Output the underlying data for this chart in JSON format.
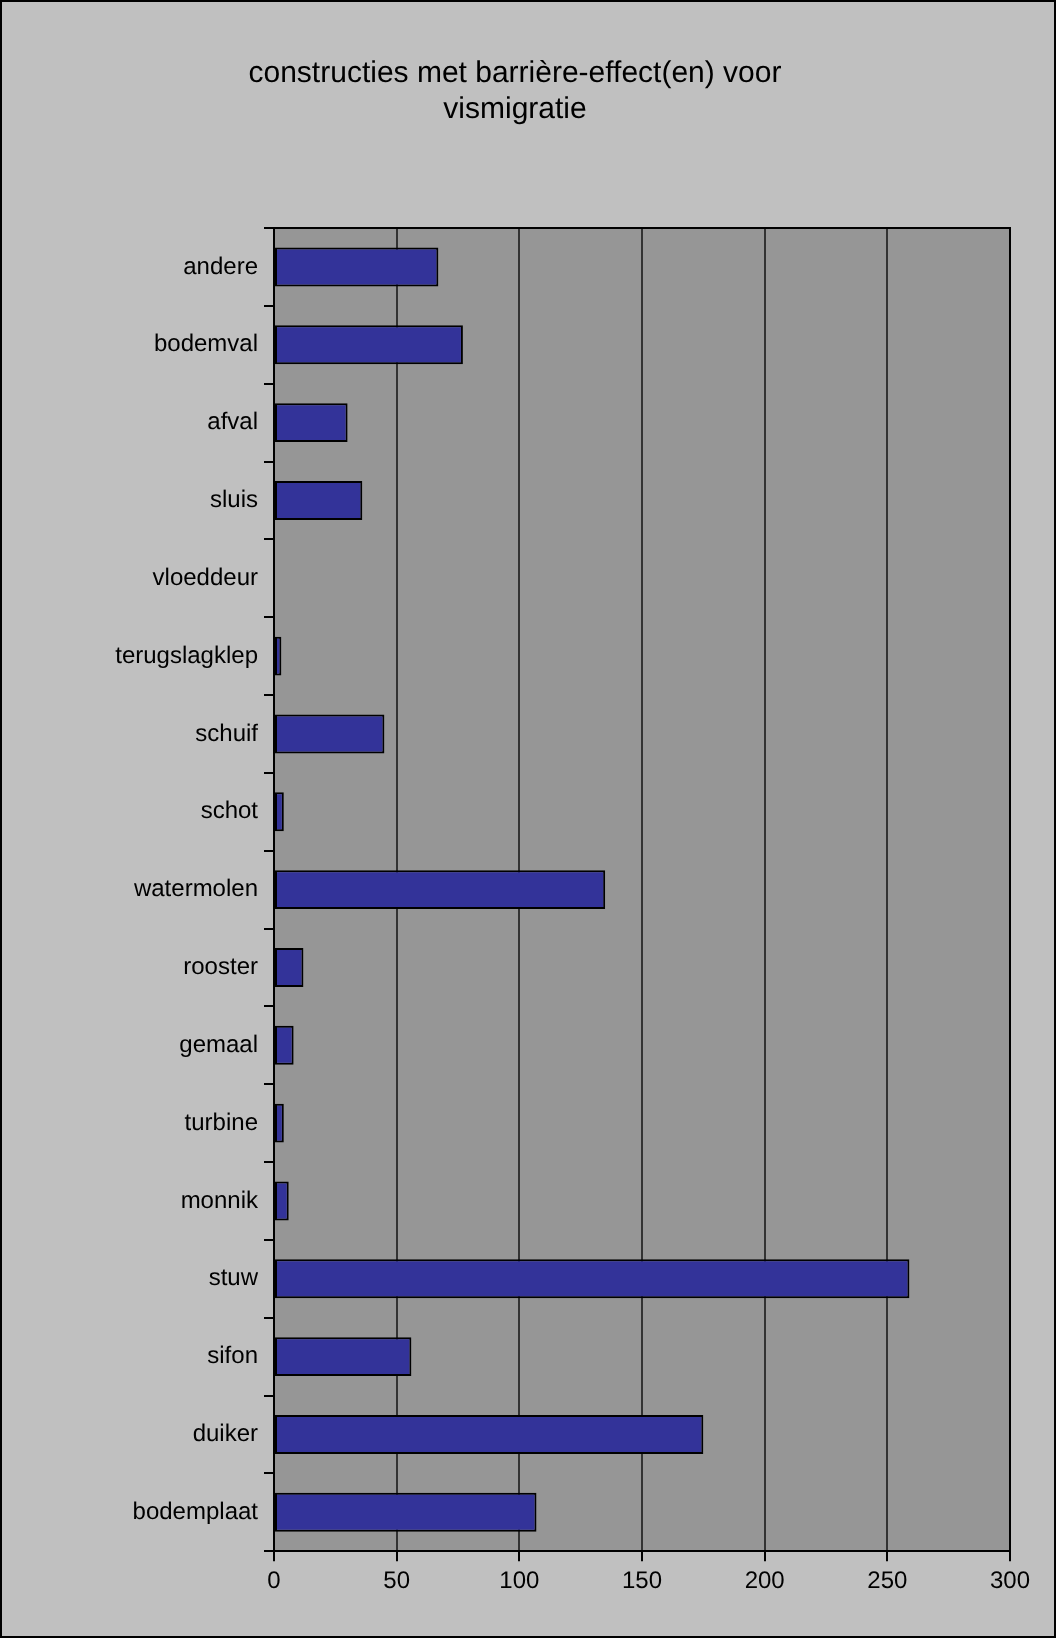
{
  "chart_data": {
    "type": "bar",
    "orientation": "horizontal",
    "title": "constructies met barrière-effect(en) voor vismigratie",
    "categories": [
      "andere",
      "bodemval",
      "afval",
      "sluis",
      "vloeddeur",
      "terugslagklep",
      "schuif",
      "schot",
      "watermolen",
      "rooster",
      "gemaal",
      "turbine",
      "monnik",
      "stuw",
      "sifon",
      "duiker",
      "bodemplaat"
    ],
    "values": [
      67,
      77,
      30,
      36,
      0,
      3,
      45,
      4,
      135,
      12,
      8,
      4,
      6,
      259,
      56,
      175,
      107
    ],
    "color": "#333399",
    "xlim": [
      0,
      300
    ],
    "xticks": [
      0,
      50,
      100,
      150,
      200,
      250,
      300
    ],
    "grid": "x",
    "legend": false
  }
}
